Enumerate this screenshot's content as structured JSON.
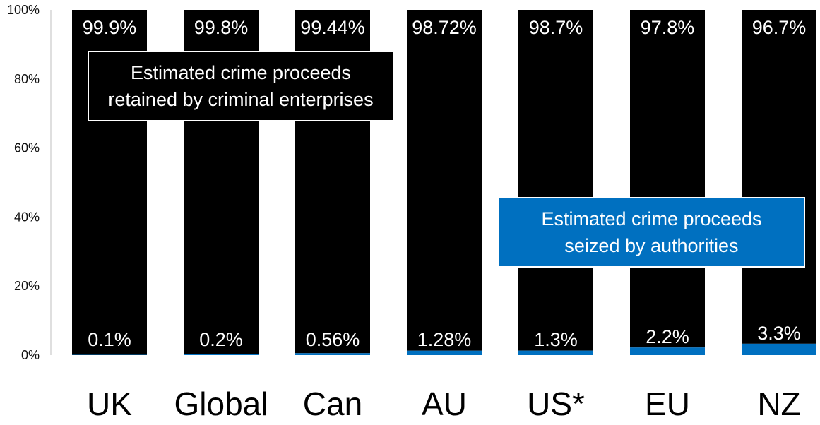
{
  "chart_data": {
    "type": "bar",
    "stacked": true,
    "ylim": [
      0,
      100
    ],
    "yticks": [
      "0%",
      "20%",
      "40%",
      "60%",
      "80%",
      "100%"
    ],
    "ytick_values": [
      0,
      20,
      40,
      60,
      80,
      100
    ],
    "categories": [
      "UK",
      "Global",
      "Can",
      "AU",
      "US*",
      "EU",
      "NZ"
    ],
    "series": [
      {
        "name": "Estimated crime proceeds seized by authorities",
        "values": [
          0.1,
          0.2,
          0.56,
          1.28,
          1.3,
          2.2,
          3.3
        ],
        "labels": [
          "0.1%",
          "0.2%",
          "0.56%",
          "1.28%",
          "1.3%",
          "2.2%",
          "3.3%"
        ],
        "color": "#0070c0"
      },
      {
        "name": "Estimated crime proceeds retained by criminal enterprises",
        "values": [
          99.9,
          99.8,
          99.44,
          98.72,
          98.7,
          97.8,
          96.7
        ],
        "labels": [
          "99.9%",
          "99.8%",
          "99.44%",
          "98.72%",
          "98.7%",
          "97.8%",
          "96.7%"
        ],
        "color": "#000000"
      }
    ],
    "grid": false
  },
  "legend": {
    "retained_line1": "Estimated crime proceeds",
    "retained_line2": "retained by criminal enterprises",
    "seized_line1": "Estimated crime proceeds",
    "seized_line2": "seized by authorities"
  }
}
